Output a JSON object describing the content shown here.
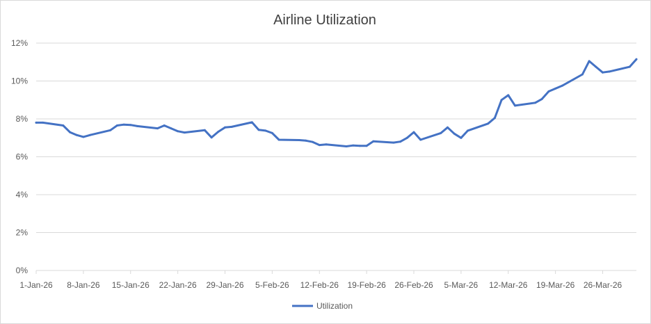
{
  "chart_data": {
    "type": "line",
    "title": "Airline Utilization",
    "xlabel": "",
    "ylabel": "",
    "ylim": [
      0,
      12
    ],
    "y_ticks": [
      0,
      2,
      4,
      6,
      8,
      10,
      12
    ],
    "y_tick_labels": [
      "0%",
      "2%",
      "4%",
      "6%",
      "8%",
      "10%",
      "12%"
    ],
    "x_range": [
      "2026-01-01",
      "2026-03-31"
    ],
    "x_ticks": [
      "2026-01-01",
      "2026-01-08",
      "2026-01-15",
      "2026-01-22",
      "2026-01-29",
      "2026-02-05",
      "2026-02-12",
      "2026-02-19",
      "2026-02-26",
      "2026-03-05",
      "2026-03-12",
      "2026-03-19",
      "2026-03-26"
    ],
    "x_tick_labels": [
      "1-Jan-26",
      "8-Jan-26",
      "15-Jan-26",
      "22-Jan-26",
      "29-Jan-26",
      "5-Feb-26",
      "12-Feb-26",
      "19-Feb-26",
      "26-Feb-26",
      "5-Mar-26",
      "12-Mar-26",
      "19-Mar-26",
      "26-Mar-26"
    ],
    "grid": true,
    "legend_position": "bottom",
    "series": [
      {
        "name": "Utilization",
        "color": "#4472c4",
        "x": [
          "2026-01-01",
          "2026-01-02",
          "2026-01-05",
          "2026-01-06",
          "2026-01-07",
          "2026-01-08",
          "2026-01-09",
          "2026-01-12",
          "2026-01-13",
          "2026-01-14",
          "2026-01-15",
          "2026-01-16",
          "2026-01-19",
          "2026-01-20",
          "2026-01-21",
          "2026-01-22",
          "2026-01-23",
          "2026-01-26",
          "2026-01-27",
          "2026-01-28",
          "2026-01-29",
          "2026-01-30",
          "2026-02-02",
          "2026-02-03",
          "2026-02-04",
          "2026-02-05",
          "2026-02-06",
          "2026-02-09",
          "2026-02-10",
          "2026-02-11",
          "2026-02-12",
          "2026-02-13",
          "2026-02-16",
          "2026-02-17",
          "2026-02-18",
          "2026-02-19",
          "2026-02-20",
          "2026-02-23",
          "2026-02-24",
          "2026-02-25",
          "2026-02-26",
          "2026-02-27",
          "2026-03-02",
          "2026-03-03",
          "2026-03-04",
          "2026-03-05",
          "2026-03-06",
          "2026-03-09",
          "2026-03-10",
          "2026-03-11",
          "2026-03-12",
          "2026-03-13",
          "2026-03-16",
          "2026-03-17",
          "2026-03-18",
          "2026-03-19",
          "2026-03-20",
          "2026-03-23",
          "2026-03-24",
          "2026-03-25",
          "2026-03-26",
          "2026-03-27",
          "2026-03-30",
          "2026-03-31"
        ],
        "y": [
          7.8,
          7.8,
          7.65,
          7.3,
          7.15,
          7.05,
          7.15,
          7.4,
          7.65,
          7.7,
          7.68,
          7.62,
          7.5,
          7.65,
          7.5,
          7.35,
          7.28,
          7.4,
          7.02,
          7.32,
          7.55,
          7.58,
          7.82,
          7.42,
          7.38,
          7.25,
          6.9,
          6.88,
          6.85,
          6.78,
          6.62,
          6.65,
          6.55,
          6.6,
          6.58,
          6.58,
          6.82,
          6.75,
          6.8,
          7.0,
          7.3,
          6.9,
          7.25,
          7.55,
          7.22,
          7.0,
          7.38,
          7.75,
          8.05,
          9.0,
          9.25,
          8.7,
          8.85,
          9.05,
          9.45,
          9.6,
          9.75,
          10.35,
          11.05,
          10.75,
          10.45,
          10.5,
          10.75,
          11.15
        ]
      }
    ]
  }
}
